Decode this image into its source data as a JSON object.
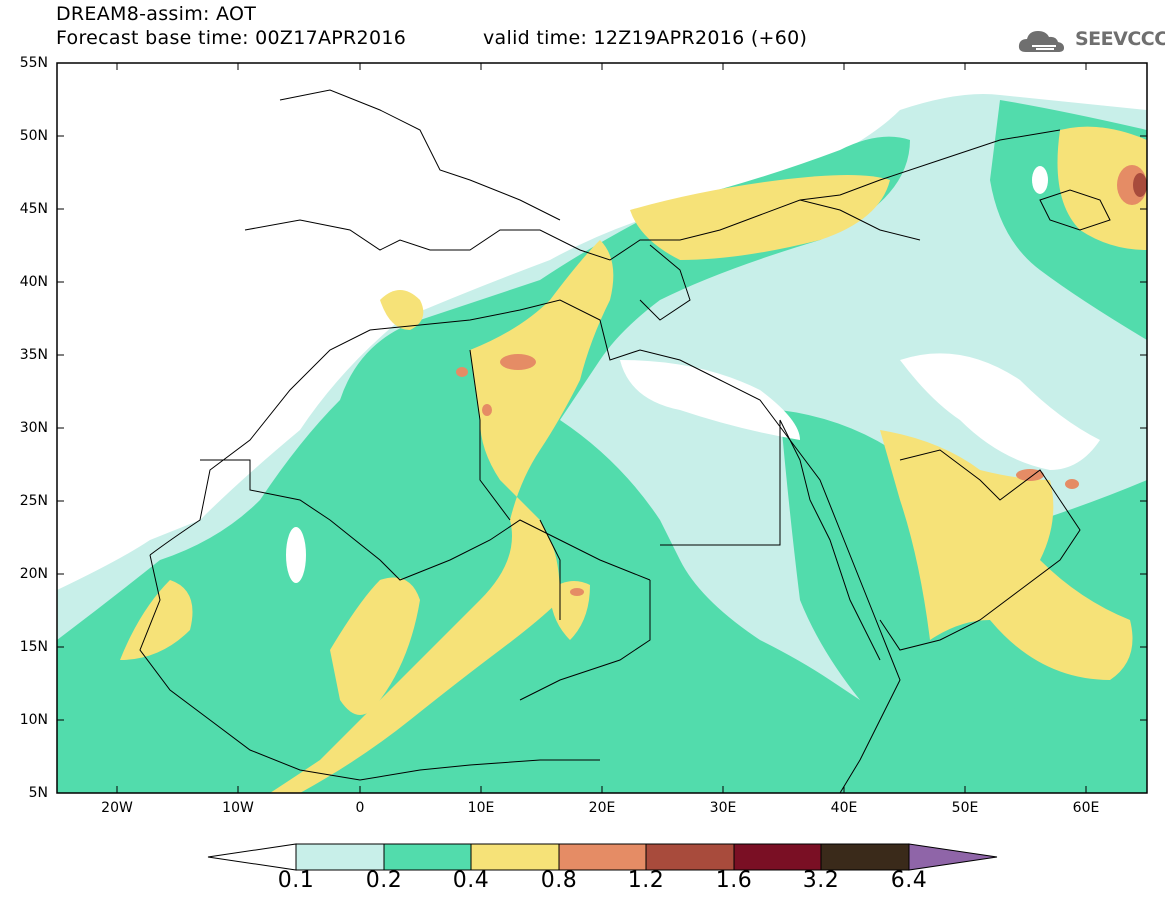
{
  "header": {
    "title_line1": "DREAM8-assim: AOT",
    "base_time": "Forecast base time: 00Z17APR2016",
    "valid_time": "valid time: 12Z19APR2016 (+60)"
  },
  "logo": {
    "text": "SEEVCCC",
    "icon": "cloud-icon"
  },
  "map": {
    "projection": "lat-lon",
    "lon_range": [
      -25,
      65
    ],
    "lat_range": [
      5,
      55
    ],
    "lat_labels": [
      "55N",
      "50N",
      "45N",
      "40N",
      "35N",
      "30N",
      "25N",
      "20N",
      "15N",
      "10N",
      "5N"
    ],
    "lon_labels": [
      "20W",
      "10W",
      "0",
      "10E",
      "20E",
      "30E",
      "40E",
      "50E",
      "60E"
    ]
  },
  "colorbar": {
    "levels": [
      "0.1",
      "0.2",
      "0.4",
      "0.8",
      "1.2",
      "1.6",
      "3.2",
      "6.4"
    ],
    "colors": [
      "#ffffff",
      "#c8efe9",
      "#52dcac",
      "#f6e278",
      "#e58c65",
      "#a84b3c",
      "#7a0f24",
      "#3a2a1a",
      "#8f65a8"
    ]
  }
}
